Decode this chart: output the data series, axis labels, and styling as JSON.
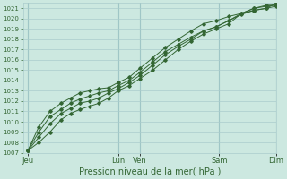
{
  "xlabel": "Pression niveau de la mer( hPa )",
  "bg_color": "#cce8e0",
  "grid_color": "#aacccc",
  "line_color": "#336633",
  "marker_color": "#336633",
  "ylim": [
    1007,
    1021.5
  ],
  "yticks": [
    1007,
    1008,
    1009,
    1010,
    1011,
    1012,
    1013,
    1014,
    1015,
    1016,
    1017,
    1018,
    1019,
    1020,
    1021
  ],
  "xlim": [
    0,
    8.0
  ],
  "xtick_positions": [
    0.15,
    3.0,
    3.7,
    6.2,
    8.0
  ],
  "xtick_labels": [
    "Jeu",
    "Lun",
    "Ven",
    "Sam",
    "Dim"
  ],
  "vline_positions": [
    0.15,
    3.0,
    3.7,
    6.2,
    8.0
  ],
  "series": [
    {
      "x": [
        0.15,
        0.5,
        0.85,
        1.2,
        1.5,
        1.8,
        2.1,
        2.4,
        2.7,
        3.0,
        3.35,
        3.7,
        4.1,
        4.5,
        4.9,
        5.3,
        5.7,
        6.1,
        6.5,
        6.9,
        7.3,
        7.7,
        8.0
      ],
      "y": [
        1007.2,
        1008.0,
        1009.0,
        1010.2,
        1010.8,
        1011.2,
        1011.5,
        1011.8,
        1012.3,
        1013.0,
        1013.5,
        1014.2,
        1015.0,
        1016.0,
        1017.0,
        1017.8,
        1018.5,
        1019.0,
        1019.5,
        1020.5,
        1021.0,
        1021.3,
        1021.3
      ]
    },
    {
      "x": [
        0.15,
        0.5,
        0.85,
        1.2,
        1.5,
        1.8,
        2.1,
        2.4,
        2.7,
        3.0,
        3.35,
        3.7,
        4.1,
        4.5,
        4.9,
        5.3,
        5.7,
        6.1,
        6.5,
        6.9,
        7.3,
        7.7,
        8.0
      ],
      "y": [
        1007.2,
        1008.5,
        1009.8,
        1010.8,
        1011.3,
        1011.8,
        1012.0,
        1012.3,
        1012.8,
        1013.2,
        1013.8,
        1014.5,
        1015.5,
        1016.5,
        1017.3,
        1018.0,
        1018.8,
        1019.2,
        1019.8,
        1020.5,
        1021.0,
        1021.2,
        1021.3
      ]
    },
    {
      "x": [
        0.15,
        0.5,
        0.85,
        1.2,
        1.5,
        1.8,
        2.1,
        2.4,
        2.7,
        3.0,
        3.35,
        3.7,
        4.1,
        4.5,
        4.9,
        5.3,
        5.7,
        6.1,
        6.5,
        6.9,
        7.3,
        7.7,
        8.0
      ],
      "y": [
        1007.2,
        1009.0,
        1010.5,
        1011.2,
        1011.8,
        1012.2,
        1012.5,
        1012.8,
        1013.0,
        1013.5,
        1014.0,
        1014.8,
        1015.8,
        1016.8,
        1017.5,
        1018.2,
        1018.8,
        1019.2,
        1019.8,
        1020.4,
        1020.8,
        1021.0,
        1021.2
      ]
    },
    {
      "x": [
        0.15,
        0.5,
        0.85,
        1.2,
        1.5,
        1.8,
        2.1,
        2.4,
        2.7,
        3.0,
        3.35,
        3.7,
        4.1,
        4.5,
        4.9,
        5.3,
        5.7,
        6.1,
        6.5,
        6.9,
        7.3,
        7.7,
        8.0
      ],
      "y": [
        1007.2,
        1009.5,
        1011.0,
        1011.8,
        1012.3,
        1012.8,
        1013.0,
        1013.2,
        1013.3,
        1013.8,
        1014.3,
        1015.2,
        1016.2,
        1017.2,
        1018.0,
        1018.8,
        1019.5,
        1019.8,
        1020.2,
        1020.5,
        1020.8,
        1021.0,
        1021.5
      ]
    }
  ]
}
